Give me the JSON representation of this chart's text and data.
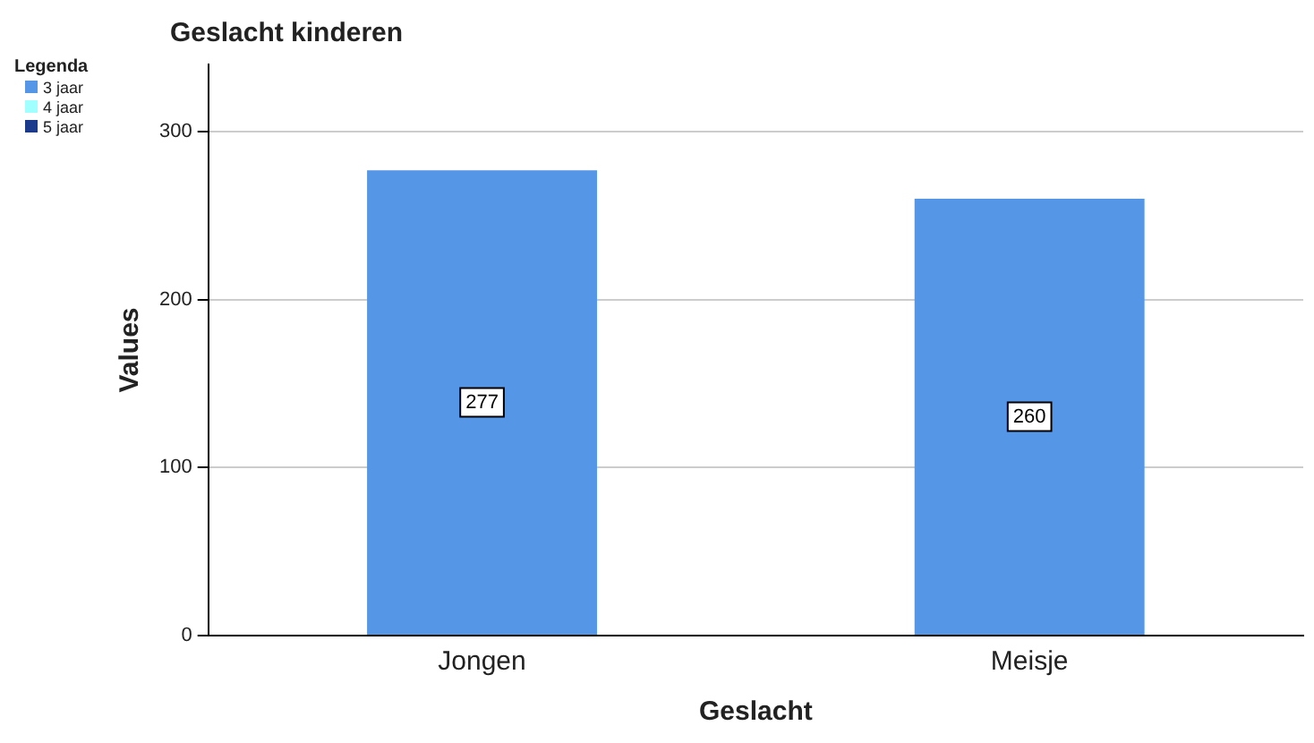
{
  "chart_data": {
    "type": "bar",
    "title": "Geslacht kinderen",
    "xlabel": "Geslacht",
    "ylabel": "Values",
    "legend_title": "Legenda",
    "categories": [
      "Jongen",
      "Meisje"
    ],
    "stacked": true,
    "series": [
      {
        "name": "3 jaar",
        "color": "#5596e6",
        "values": [
          277,
          260
        ]
      },
      {
        "name": "4 jaar",
        "color": "#a0ffff",
        "values": [
          null,
          null
        ]
      },
      {
        "name": "5 jaar",
        "color": "#1c3a8c",
        "values": [
          null,
          null
        ]
      }
    ],
    "ylim": [
      0,
      340
    ],
    "yticks": [
      0,
      100,
      200,
      300
    ],
    "grid": "y",
    "legend": "top left",
    "data_labels": true
  }
}
